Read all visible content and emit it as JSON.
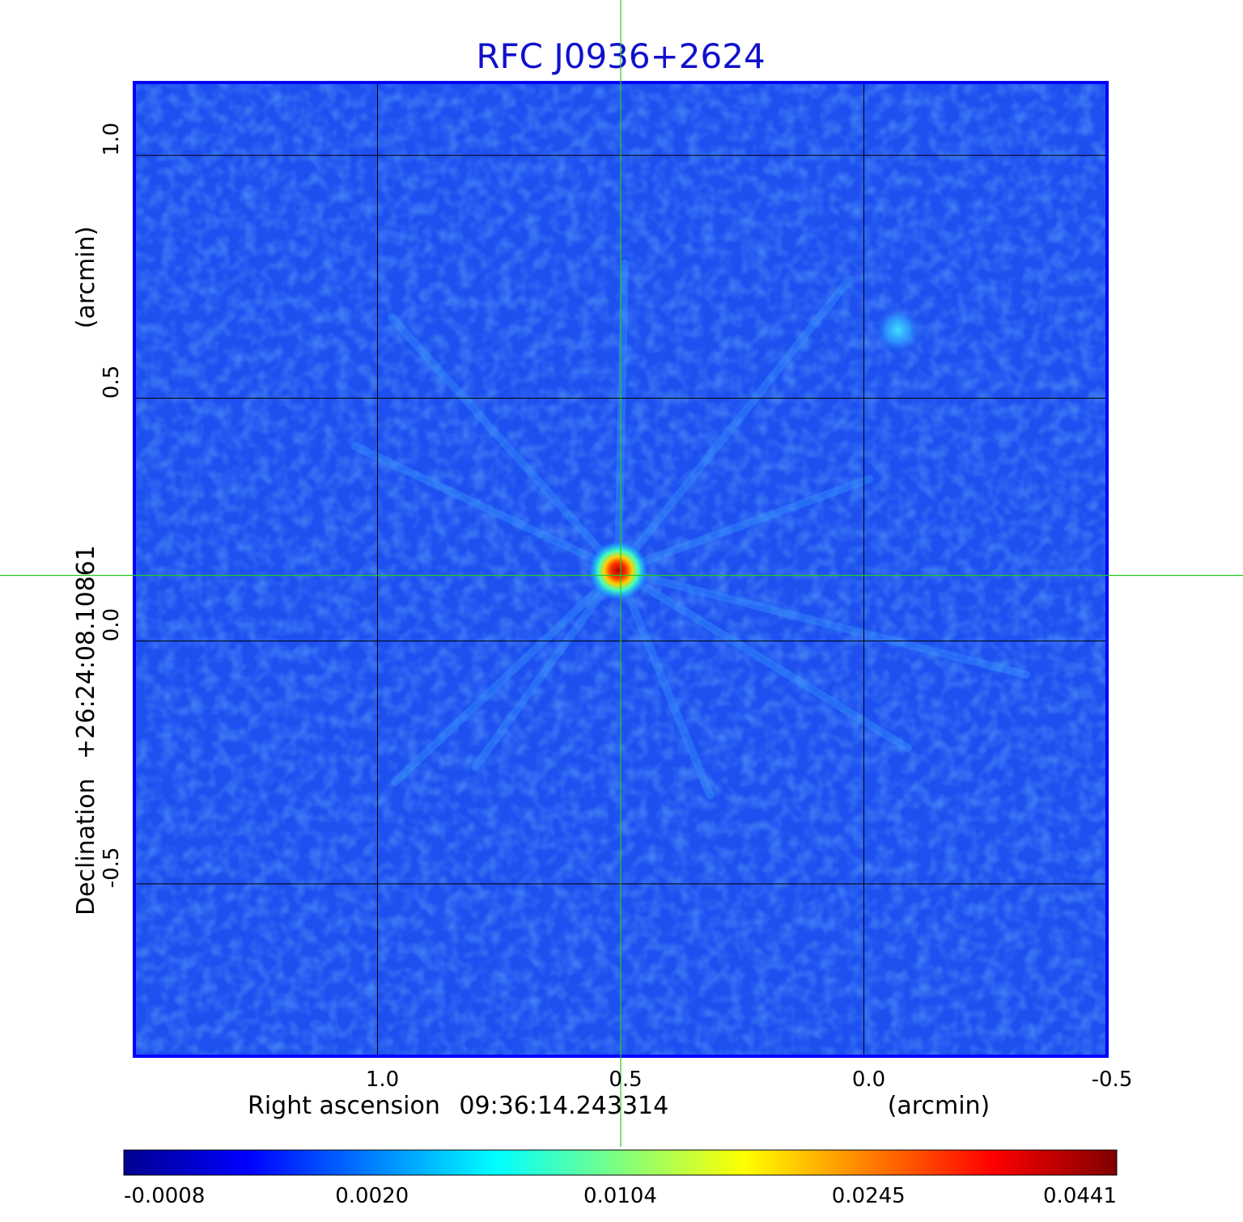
{
  "title": "RFC J0936+2624",
  "x_axis": {
    "label": "Right ascension",
    "center_coord": "09:36:14.243314",
    "units": "(arcmin)",
    "ticks": [
      {
        "value": 1.0,
        "label": "1.0"
      },
      {
        "value": 0.5,
        "label": "0.5"
      },
      {
        "value": 0.0,
        "label": "0.0"
      },
      {
        "value": -0.5,
        "label": "-0.5"
      }
    ],
    "range": [
      1.5,
      -0.5
    ]
  },
  "y_axis": {
    "label": "Declination",
    "center_coord": "+26:24:08.10861",
    "units": "(arcmin)",
    "ticks": [
      {
        "value": 1.0,
        "label": "1.0"
      },
      {
        "value": 0.5,
        "label": "0.5"
      },
      {
        "value": 0.0,
        "label": "0.0"
      },
      {
        "value": -0.5,
        "label": "-0.5"
      }
    ],
    "range": [
      -0.855,
      1.15
    ]
  },
  "crosshair": {
    "ra_offset": 0.5,
    "dec_offset": 0.135,
    "color": "#22cc22"
  },
  "sources": [
    {
      "ra_offset": 0.505,
      "dec_offset": 0.145,
      "peak": 0.0441
    },
    {
      "ra_offset": -0.07,
      "dec_offset": 0.64,
      "peak": 0.006
    }
  ],
  "colorbar": {
    "colormap": "jet",
    "ticks": [
      "-0.0008",
      "0.0020",
      "0.0104",
      "0.0245",
      "0.0441"
    ]
  },
  "colors": {
    "title": "#1010cc",
    "frame": "#0000ff",
    "grid": "#000000",
    "background_map": "#1e50f0"
  }
}
